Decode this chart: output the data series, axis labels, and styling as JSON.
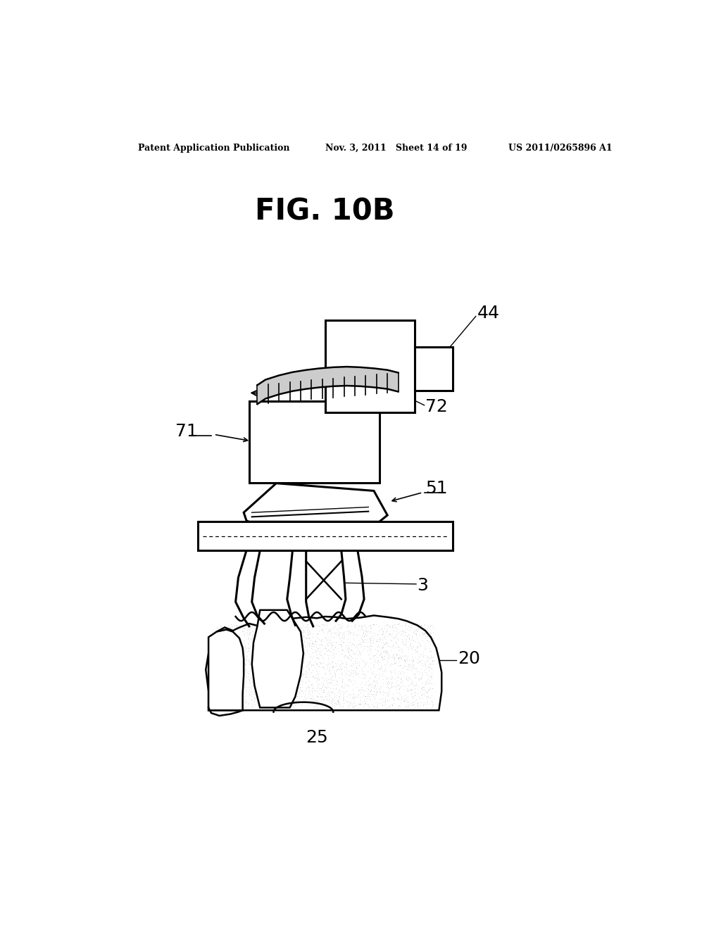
{
  "bg_color": "#ffffff",
  "header_left": "Patent Application Publication",
  "header_mid": "Nov. 3, 2011   Sheet 14 of 19",
  "header_right": "US 2011/0265896 A1",
  "fig_title": "FIG. 10B"
}
